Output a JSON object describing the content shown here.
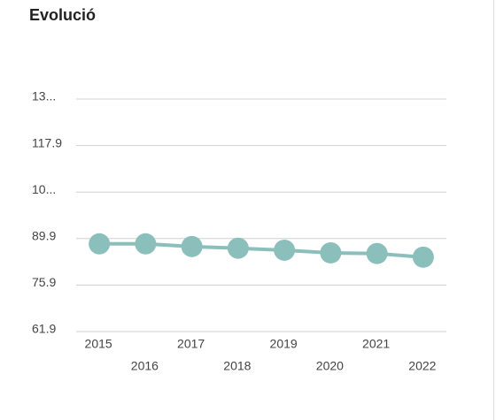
{
  "chart_data": {
    "type": "line",
    "title": "Evolució",
    "categories": [
      "2015",
      "2016",
      "2017",
      "2018",
      "2019",
      "2020",
      "2021",
      "2022"
    ],
    "series": [
      {
        "color": "#8bbfbb",
        "values": [
          88.3,
          88.3,
          87.5,
          87.0,
          86.4,
          85.6,
          85.4,
          84.3
        ]
      }
    ],
    "ylim": [
      61.9,
      131.9
    ],
    "yticks": [
      61.9,
      75.9,
      89.9,
      {
        "value": 103.9,
        "label": "10..."
      },
      117.9,
      {
        "value": 131.9,
        "label": "13..."
      }
    ],
    "grid": true
  }
}
